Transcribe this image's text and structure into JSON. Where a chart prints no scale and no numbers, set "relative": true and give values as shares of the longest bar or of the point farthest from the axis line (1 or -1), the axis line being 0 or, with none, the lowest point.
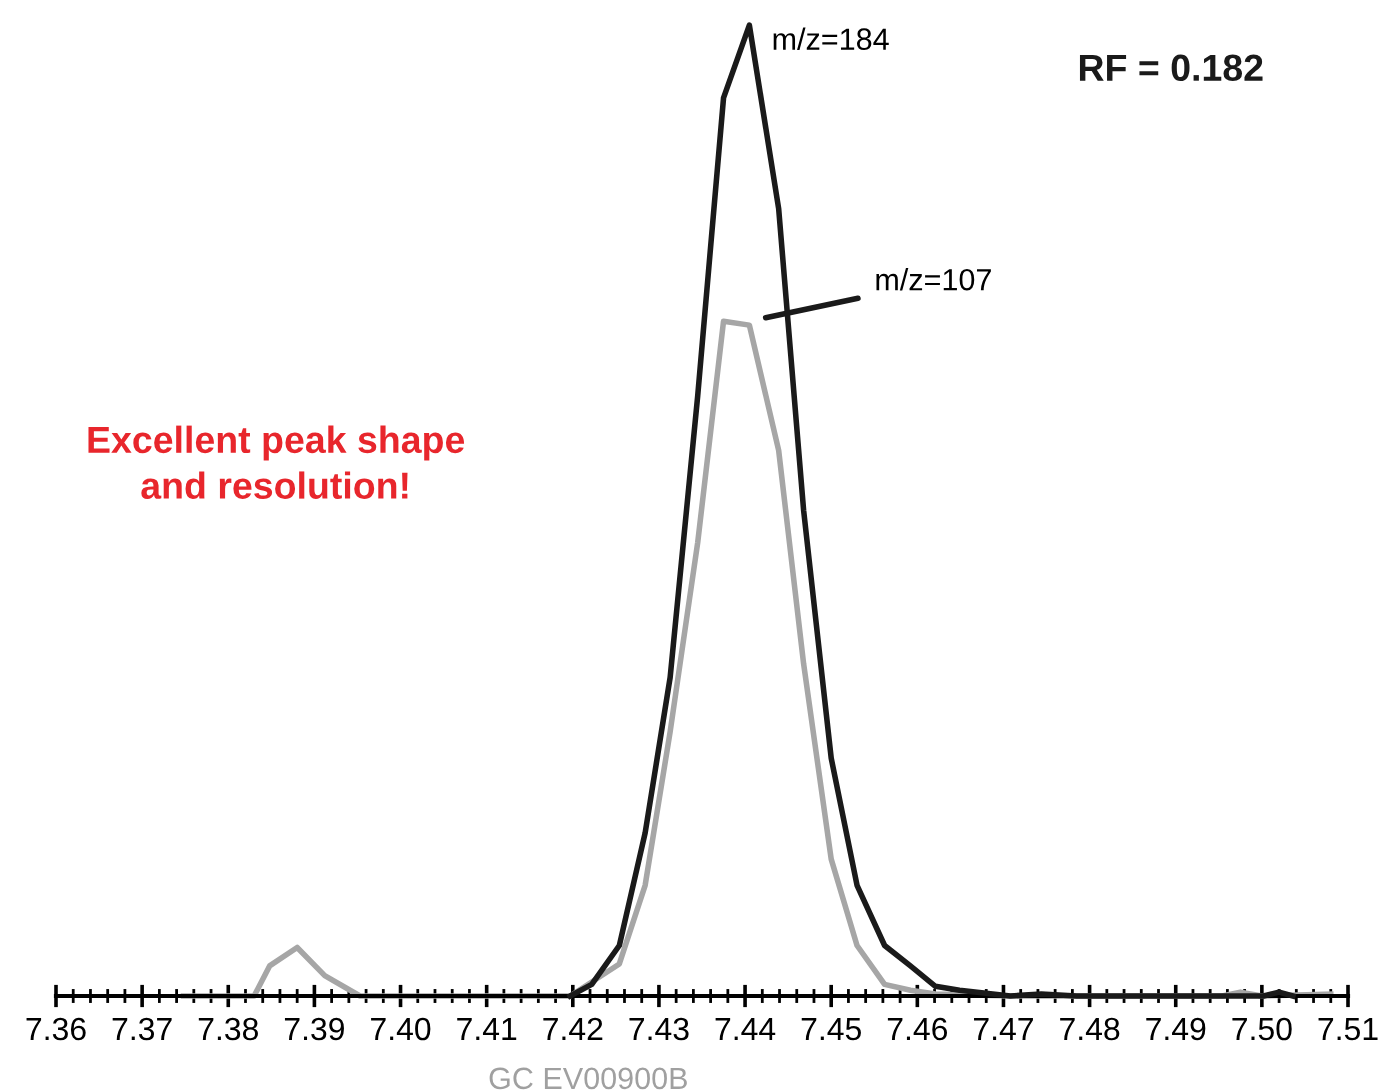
{
  "chart_data": {
    "type": "line",
    "relative": true,
    "annotations": [
      "RF = 0.182",
      "Excellent peak shape\nand resolution!",
      "GC EV00900B"
    ],
    "xlim": [
      7.36,
      7.51
    ],
    "xticks": [
      {
        "value": 7.36,
        "label": "7.36"
      },
      {
        "value": 7.37,
        "label": "7.37"
      },
      {
        "value": 7.38,
        "label": "7.38"
      },
      {
        "value": 7.39,
        "label": "7.39"
      },
      {
        "value": 7.4,
        "label": "7.40"
      },
      {
        "value": 7.41,
        "label": "7.41"
      },
      {
        "value": 7.42,
        "label": "7.42"
      },
      {
        "value": 7.43,
        "label": "7.43"
      },
      {
        "value": 7.44,
        "label": "7.44"
      },
      {
        "value": 7.45,
        "label": "7.45"
      },
      {
        "value": 7.46,
        "label": "7.46"
      },
      {
        "value": 7.47,
        "label": "7.47"
      },
      {
        "value": 7.48,
        "label": "7.48"
      },
      {
        "value": 7.49,
        "label": "7.49"
      },
      {
        "value": 7.5,
        "label": "7.50"
      },
      {
        "value": 7.51,
        "label": "7.51"
      }
    ],
    "tick_labels": "x",
    "grid": false,
    "legend": false,
    "marker": "none",
    "line_style": "solid",
    "series": [
      {
        "name": "m/z=107",
        "color": "#a6a6a6",
        "x": [
          7.3748,
          7.383,
          7.3848,
          7.388,
          7.3912,
          7.3953,
          7.4197,
          7.4254,
          7.4284,
          7.4313,
          7.4345,
          7.4375,
          7.4405,
          7.4439,
          7.4468,
          7.45,
          7.453,
          7.4562,
          7.4592,
          7.4621,
          7.4708,
          7.4954,
          7.4975,
          7.5,
          7.508
        ],
        "values": [
          0,
          0,
          0.031,
          0.05,
          0.021,
          0,
          0,
          0.033,
          0.114,
          0.272,
          0.467,
          0.695,
          0.691,
          0.562,
          0.342,
          0.141,
          0.052,
          0.012,
          0.006,
          0.002,
          0,
          0,
          0.004,
          0,
          0.002
        ]
      },
      {
        "name": "m/z=184",
        "color": "#1a1a1a",
        "x": [
          7.4197,
          7.4222,
          7.4254,
          7.4284,
          7.4313,
          7.4345,
          7.4375,
          7.4405,
          7.4439,
          7.4468,
          7.45,
          7.453,
          7.4562,
          7.4592,
          7.4621,
          7.4649,
          7.4708,
          7.4744,
          7.4785,
          7.5002,
          7.502,
          7.5036
        ],
        "values": [
          0,
          0.012,
          0.052,
          0.168,
          0.328,
          0.618,
          0.925,
          1,
          0.811,
          0.5,
          0.245,
          0.114,
          0.052,
          0.031,
          0.01,
          0.006,
          0,
          0.002,
          0,
          0,
          0.004,
          0
        ]
      }
    ]
  }
}
